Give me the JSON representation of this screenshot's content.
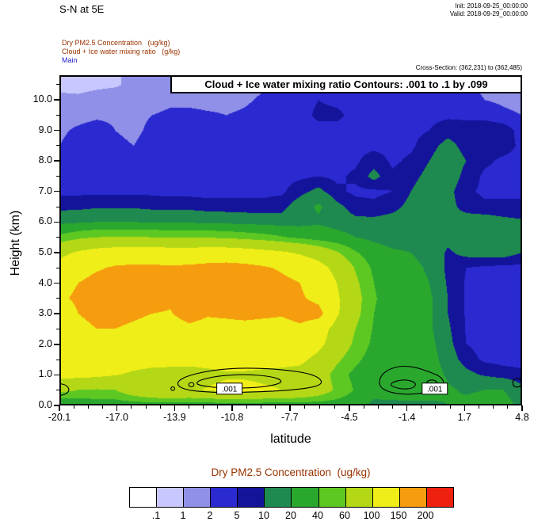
{
  "header": {
    "title": "S-N at 5E",
    "init": "Init: 2018-09-25_00:00:00",
    "valid": "Valid: 2018-09-29_00:00:00",
    "field1": "Dry PM2.5 Concentration   (ug/kg)",
    "field2": "Cloud + Ice water mixing ratio   (g/kg)",
    "model": "Main",
    "cross_section": "Cross-Section: (362,231) to (362,485)"
  },
  "plot": {
    "inner_title": "Cloud + Ice water mixing ratio Contours: .001 to .1 by .099",
    "xlabel": "latitude",
    "ylabel": "Height (km)",
    "xticks": [
      "-20.1",
      "-17.0",
      "-13.9",
      "-10.8",
      "-7.7",
      "-4.5",
      "-1.4",
      "1.7",
      "4.8"
    ],
    "xtick_values": [
      -20.1,
      -17.0,
      -13.9,
      -10.8,
      -7.7,
      -4.5,
      -1.4,
      1.7,
      4.8
    ],
    "yticks": [
      "0.0",
      "1.0",
      "2.0",
      "3.0",
      "4.0",
      "5.0",
      "6.0",
      "7.0",
      "8.0",
      "9.0",
      "10.0"
    ],
    "ytick_values": [
      0,
      1,
      2,
      3,
      4,
      5,
      6,
      7,
      8,
      9,
      10
    ]
  },
  "legend": {
    "title": "Dry PM2.5 Concentration  (ug/kg)",
    "labels": [
      ".1",
      "1",
      "2",
      "5",
      "10",
      "20",
      "40",
      "60",
      "100",
      "150",
      "200"
    ],
    "colors": [
      "#ffffff",
      "#c8c8ff",
      "#9090e8",
      "#2a2ad0",
      "#14149b",
      "#1f8a50",
      "#2aa82e",
      "#5ec822",
      "#b4d816",
      "#f0ee18",
      "#f59d0e",
      "#ee2010"
    ]
  },
  "chart_data": {
    "type": "heatmap",
    "subtype": "filled-contour-cross-section",
    "title": "S-N at 5E",
    "xlabel": "latitude",
    "ylabel": "Height (km)",
    "x_range": [
      -20.1,
      4.8
    ],
    "y_range": [
      0,
      10.8
    ],
    "levels": [
      0.1,
      1,
      2,
      5,
      10,
      20,
      40,
      60,
      100,
      150,
      200
    ],
    "level_colors": [
      "#ffffff",
      "#c8c8ff",
      "#9090e8",
      "#2a2ad0",
      "#14149b",
      "#1f8a50",
      "#2aa82e",
      "#5ec822",
      "#b4d816",
      "#f0ee18",
      "#f59d0e",
      "#ee2010"
    ],
    "x": [
      -20.1,
      -19.1,
      -18.1,
      -17.1,
      -16.1,
      -15.1,
      -14.1,
      -13.1,
      -12.1,
      -11.1,
      -10.2,
      -9.2,
      -8.2,
      -7.2,
      -6.2,
      -5.2,
      -4.2,
      -3.2,
      -2.2,
      -1.2,
      -0.2,
      0.8,
      1.8,
      2.8,
      3.8,
      4.8
    ],
    "y": [
      0,
      0.5,
      1,
      1.5,
      2,
      2.5,
      3,
      3.5,
      4,
      4.5,
      5,
      5.5,
      6,
      6.5,
      7,
      7.5,
      8,
      8.5,
      9,
      9.5,
      10,
      10.5
    ],
    "values": [
      [
        14,
        24,
        28,
        28,
        28,
        28,
        28,
        28,
        28,
        28,
        28,
        28,
        28,
        28,
        28,
        30,
        28,
        16,
        14,
        14,
        16,
        20,
        24,
        26,
        26,
        16
      ],
      [
        70,
        60,
        58,
        60,
        80,
        95,
        100,
        96,
        102,
        110,
        110,
        105,
        100,
        95,
        80,
        55,
        38,
        26,
        32,
        36,
        30,
        22,
        18,
        20,
        20,
        12
      ],
      [
        110,
        112,
        108,
        102,
        95,
        90,
        88,
        86,
        90,
        95,
        95,
        92,
        90,
        88,
        76,
        50,
        34,
        28,
        32,
        35,
        28,
        18,
        12,
        9,
        7,
        6
      ],
      [
        115,
        120,
        120,
        118,
        115,
        112,
        112,
        112,
        115,
        118,
        118,
        115,
        112,
        108,
        90,
        65,
        45,
        30,
        30,
        32,
        26,
        14,
        7,
        4,
        3.5,
        3.5
      ],
      [
        118,
        128,
        135,
        135,
        128,
        122,
        120,
        122,
        122,
        125,
        125,
        122,
        122,
        125,
        110,
        80,
        55,
        35,
        30,
        30,
        24,
        12,
        5,
        3.5,
        3.5,
        3.5
      ],
      [
        120,
        135,
        150,
        150,
        140,
        130,
        128,
        140,
        132,
        130,
        132,
        130,
        130,
        140,
        120,
        85,
        60,
        38,
        30,
        28,
        22,
        11,
        4.5,
        3.5,
        3.5,
        3.5
      ],
      [
        132,
        150,
        165,
        168,
        160,
        150,
        148,
        168,
        155,
        160,
        165,
        160,
        155,
        168,
        165,
        105,
        68,
        40,
        30,
        28,
        22,
        10,
        4.5,
        3.5,
        3.5,
        3.5
      ],
      [
        145,
        155,
        170,
        172,
        168,
        160,
        155,
        160,
        168,
        172,
        175,
        170,
        162,
        155,
        140,
        105,
        70,
        42,
        30,
        28,
        22,
        10,
        4.5,
        3.5,
        3.5,
        3.5
      ],
      [
        140,
        150,
        165,
        168,
        168,
        165,
        162,
        165,
        170,
        175,
        175,
        170,
        160,
        150,
        130,
        100,
        65,
        40,
        28,
        26,
        20,
        9,
        4.5,
        3.5,
        3.5,
        3.5
      ],
      [
        115,
        130,
        145,
        155,
        158,
        158,
        155,
        158,
        162,
        165,
        162,
        155,
        145,
        132,
        115,
        88,
        58,
        36,
        26,
        24,
        18,
        8,
        5,
        4,
        3.5,
        3.5
      ],
      [
        90,
        105,
        115,
        120,
        122,
        122,
        120,
        120,
        122,
        122,
        118,
        112,
        105,
        95,
        82,
        62,
        42,
        28,
        22,
        20,
        15,
        9,
        12,
        13,
        13,
        10
      ],
      [
        45,
        55,
        60,
        62,
        62,
        60,
        58,
        58,
        58,
        56,
        52,
        48,
        42,
        36,
        30,
        26,
        20,
        16,
        14,
        14,
        13,
        12,
        14,
        15,
        14,
        12
      ],
      [
        16,
        18,
        20,
        20,
        20,
        19,
        18,
        18,
        17,
        16,
        15,
        14,
        13,
        14,
        18,
        14,
        12,
        12,
        13,
        14,
        13,
        12,
        13,
        14,
        12,
        11
      ],
      [
        8,
        8,
        9,
        9,
        9,
        8,
        8,
        8,
        7,
        7,
        7,
        7,
        8,
        14,
        22,
        12,
        7,
        6,
        8,
        12,
        14,
        12,
        8,
        6,
        6,
        6
      ],
      [
        4,
        4,
        4,
        4,
        4,
        4,
        3.5,
        3.5,
        3.5,
        3.5,
        3.5,
        3.5,
        4,
        8,
        12,
        6,
        4,
        4,
        5,
        10,
        14,
        12,
        6,
        4,
        4,
        4
      ],
      [
        2.5,
        3,
        3.5,
        3.5,
        3.5,
        3.5,
        3.5,
        3.5,
        3.5,
        3.5,
        3.5,
        3.5,
        3.5,
        4,
        5,
        4,
        6,
        12,
        6,
        8,
        12,
        14,
        8,
        4,
        3.5,
        3.5
      ],
      [
        2.2,
        2.8,
        3.2,
        3.5,
        3.5,
        3.5,
        3.5,
        3.5,
        3.5,
        3.5,
        3.5,
        3.5,
        3.5,
        3.5,
        3.5,
        3.5,
        4,
        8,
        4,
        6,
        10,
        14,
        10,
        6,
        4,
        3.5
      ],
      [
        2.0,
        2.5,
        3,
        2.2,
        2.0,
        2.4,
        3,
        3.2,
        3.5,
        3.5,
        3.5,
        3.5,
        3.5,
        3.5,
        3.5,
        3.5,
        3.5,
        3.5,
        3.5,
        4,
        8,
        12,
        8,
        7,
        7,
        4
      ],
      [
        1.8,
        2.2,
        2.5,
        2.0,
        1.8,
        2.2,
        2.8,
        3,
        3.2,
        3.5,
        3.5,
        3.5,
        3.5,
        3.5,
        3.5,
        3.5,
        3.5,
        3.5,
        3.5,
        3.5,
        5,
        8,
        7,
        8,
        7,
        3.5
      ],
      [
        1.5,
        1.6,
        1.8,
        1.8,
        1.8,
        2.0,
        2.2,
        2.4,
        2.2,
        2.0,
        2.2,
        2.6,
        3,
        3.2,
        6,
        6,
        3.5,
        3.5,
        3.2,
        3,
        3.5,
        4,
        4,
        3.5,
        2.5,
        2
      ],
      [
        1.2,
        1.2,
        1.4,
        1.5,
        1.5,
        1.6,
        1.8,
        1.6,
        1.5,
        1.6,
        1.8,
        2.2,
        2.6,
        3,
        5,
        4,
        3,
        3,
        2.8,
        2.6,
        3,
        3.2,
        3,
        2,
        1.6,
        1.3
      ],
      [
        0.8,
        0.7,
        0.8,
        0.9,
        1.2,
        1.4,
        1.5,
        1.3,
        1.2,
        1.4,
        1.6,
        1.8,
        2.2,
        2.6,
        3.5,
        3,
        2.6,
        2.6,
        2.4,
        2.2,
        2.6,
        2.8,
        2.4,
        1.4,
        1.0,
        0.85
      ]
    ],
    "overlay_contours": {
      "field": "Cloud + Ice water mixing ratio (g/kg)",
      "levels": [
        0.001,
        0.1
      ],
      "paths": [
        {
          "closed": true,
          "points": [
            [
              -13.7,
              0.62
            ],
            [
              -13.2,
              0.5
            ],
            [
              -12.2,
              0.44
            ],
            [
              -11.0,
              0.42
            ],
            [
              -9.8,
              0.44
            ],
            [
              -8.6,
              0.46
            ],
            [
              -7.4,
              0.52
            ],
            [
              -6.4,
              0.6
            ],
            [
              -5.95,
              0.72
            ],
            [
              -6.1,
              0.9
            ],
            [
              -6.7,
              1.05
            ],
            [
              -7.8,
              1.15
            ],
            [
              -9.2,
              1.22
            ],
            [
              -10.8,
              1.22
            ],
            [
              -12.2,
              1.12
            ],
            [
              -13.3,
              0.95
            ],
            [
              -13.75,
              0.78
            ]
          ]
        },
        {
          "closed": true,
          "points": [
            [
              -12.6,
              0.66
            ],
            [
              -11.6,
              0.58
            ],
            [
              -10.4,
              0.56
            ],
            [
              -9.2,
              0.6
            ],
            [
              -8.3,
              0.7
            ],
            [
              -8.1,
              0.82
            ],
            [
              -8.7,
              0.95
            ],
            [
              -10.0,
              1.02
            ],
            [
              -11.4,
              0.98
            ],
            [
              -12.4,
              0.86
            ],
            [
              -12.75,
              0.75
            ]
          ]
        },
        {
          "closed": true,
          "points": [
            [
              -2.9,
              0.62
            ],
            [
              -2.4,
              0.44
            ],
            [
              -1.6,
              0.36
            ],
            [
              -0.8,
              0.38
            ],
            [
              -0.1,
              0.46
            ],
            [
              0.45,
              0.58
            ],
            [
              0.62,
              0.75
            ],
            [
              0.4,
              0.95
            ],
            [
              -0.2,
              1.1
            ],
            [
              -0.9,
              1.25
            ],
            [
              -1.7,
              1.3
            ],
            [
              -2.4,
              1.18
            ],
            [
              -2.85,
              0.95
            ]
          ]
        },
        {
          "closed": true,
          "points": [
            [
              -2.2,
              0.62
            ],
            [
              -1.6,
              0.52
            ],
            [
              -1.0,
              0.58
            ],
            [
              -0.9,
              0.74
            ],
            [
              -1.4,
              0.85
            ],
            [
              -2.0,
              0.8
            ],
            [
              -2.3,
              0.7
            ]
          ]
        },
        {
          "closed": true,
          "points": [
            [
              -0.3,
              0.62
            ],
            [
              0.1,
              0.6
            ],
            [
              0.3,
              0.72
            ],
            [
              0.05,
              0.85
            ],
            [
              -0.35,
              0.8
            ]
          ]
        },
        {
          "closed": true,
          "points": [
            [
              4.3,
              0.6
            ],
            [
              4.75,
              0.6
            ],
            [
              4.75,
              0.88
            ],
            [
              4.3,
              0.88
            ]
          ]
        },
        {
          "closed": false,
          "points": [
            [
              -20.1,
              0.32
            ],
            [
              -19.75,
              0.36
            ],
            [
              -19.55,
              0.5
            ],
            [
              -19.7,
              0.66
            ],
            [
              -20.1,
              0.72
            ]
          ]
        },
        {
          "circle": [
            -13.0,
            0.68,
            0.14,
            0.07
          ]
        },
        {
          "circle": [
            -14.0,
            0.55,
            0.1,
            0.06
          ]
        }
      ],
      "labels": [
        {
          "text": ".001",
          "lat": -10.95,
          "h": 0.55
        },
        {
          "text": ".001",
          "lat": 0.1,
          "h": 0.55
        }
      ]
    }
  }
}
